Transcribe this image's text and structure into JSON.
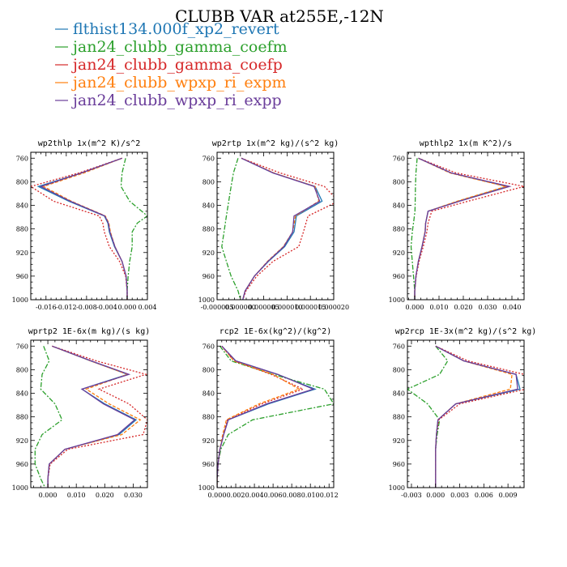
{
  "figure": {
    "title": "CLUBB VAR at255E,-12N"
  },
  "legend": [
    {
      "label": "flthist134.000f_xp2_revert",
      "color": "#1f77b4"
    },
    {
      "label": "jan24_clubb_gamma_coefm",
      "color": "#2ca02c"
    },
    {
      "label": "jan24_clubb_gamma_coefp",
      "color": "#d62728"
    },
    {
      "label": "jan24_clubb_wpxp_ri_expm",
      "color": "#ff7f0e"
    },
    {
      "label": "jan24_clubb_wpxp_ri_expp",
      "color": "#6a3d9a"
    }
  ],
  "chart_data": [
    {
      "type": "line",
      "title": "wp2thlp   1x(m^2 K)/s^2",
      "xlim": [
        -0.019,
        0.004
      ],
      "ylim": [
        1000,
        750
      ],
      "xticks": [
        -0.016,
        -0.012,
        -0.008,
        -0.004,
        0.0,
        0.004
      ],
      "xticklabels": [
        "-0.016",
        "-0.012",
        "-0.008",
        "-0.004",
        "0.000",
        "0.004"
      ],
      "yticks": [
        760,
        800,
        840,
        880,
        920,
        960,
        1000
      ],
      "y": [
        760,
        785,
        808,
        833,
        858,
        870,
        885,
        910,
        935,
        960,
        985,
        1000
      ],
      "series": [
        {
          "color": "#1f77b4",
          "dash": "",
          "values": [
            -0.001,
            -0.009,
            -0.0175,
            -0.0115,
            -0.0045,
            -0.0038,
            -0.0035,
            -0.0025,
            -0.001,
            -0.0002,
            0.0,
            0.0
          ]
        },
        {
          "color": "#2ca02c",
          "dash": "6,2,2,2",
          "values": [
            -0.0003,
            -0.001,
            -0.0012,
            0.0005,
            0.004,
            0.002,
            0.001,
            0.001,
            0.0005,
            0.0002,
            0.0,
            0.0
          ]
        },
        {
          "color": "#d62728",
          "dash": "2,2",
          "values": [
            -0.001,
            -0.0095,
            -0.019,
            -0.0145,
            -0.0055,
            -0.0048,
            -0.0045,
            -0.0035,
            -0.0015,
            -0.0003,
            0.0,
            0.0
          ]
        },
        {
          "color": "#ff7f0e",
          "dash": "4,2",
          "values": [
            -0.001,
            -0.0085,
            -0.0165,
            -0.011,
            -0.0043,
            -0.0036,
            -0.0033,
            -0.0024,
            -0.001,
            -0.0002,
            0.0,
            0.0
          ]
        },
        {
          "color": "#6a3d9a",
          "dash": "",
          "values": [
            -0.001,
            -0.009,
            -0.017,
            -0.0112,
            -0.0044,
            -0.0037,
            -0.0034,
            -0.0024,
            -0.001,
            -0.0002,
            0.0,
            0.0
          ]
        }
      ]
    },
    {
      "type": "line",
      "title": "wp2rtp   1x(m^2 kg)/(s^2 kg)",
      "xlim": [
        -5e-06,
        2e-05
      ],
      "ylim": [
        1000,
        750
      ],
      "xticks": [
        -5e-06,
        0.0,
        5e-06,
        1e-05,
        1.5e-05,
        2e-05
      ],
      "xticklabels": [
        "-0.000005",
        "0.000000",
        "0.000005",
        "0.000010",
        "0.000015",
        "0.000020"
      ],
      "yticks": [
        760,
        800,
        840,
        880,
        920,
        960,
        1000
      ],
      "y": [
        760,
        785,
        808,
        833,
        858,
        885,
        910,
        935,
        960,
        985,
        1000
      ],
      "series": [
        {
          "color": "#1f77b4",
          "dash": "",
          "values": [
            2e-07,
            7e-06,
            1.6e-05,
            1.75e-05,
            1.2e-05,
            1.15e-05,
            9.5e-06,
            6e-06,
            3e-06,
            1e-06,
            5e-07
          ]
        },
        {
          "color": "#2ca02c",
          "dash": "6,2,2,2",
          "values": [
            -5e-07,
            -1.5e-06,
            -2e-06,
            -2.5e-06,
            -3e-06,
            -3.5e-06,
            -4e-06,
            -3e-06,
            -2e-06,
            -5e-07,
            0.0
          ]
        },
        {
          "color": "#d62728",
          "dash": "2,2",
          "values": [
            2e-07,
            8.5e-06,
            1.8e-05,
            2.1e-05,
            1.45e-05,
            1.35e-05,
            1.25e-05,
            7e-06,
            3.5e-06,
            1.2e-06,
            5e-07
          ]
        },
        {
          "color": "#ff7f0e",
          "dash": "4,2",
          "values": [
            2e-07,
            7.2e-06,
            1.6e-05,
            1.68e-05,
            1.18e-05,
            1.12e-05,
            9.2e-06,
            5.8e-06,
            3e-06,
            1e-06,
            5e-07
          ]
        },
        {
          "color": "#6a3d9a",
          "dash": "",
          "values": [
            2e-07,
            7e-06,
            1.58e-05,
            1.7e-05,
            1.15e-05,
            1.12e-05,
            9.3e-06,
            5.9e-06,
            3e-06,
            1e-06,
            5e-07
          ]
        }
      ]
    },
    {
      "type": "line",
      "title": "wpthlp2  1x(m K^2)/s",
      "xlim": [
        -0.003,
        0.045
      ],
      "ylim": [
        1000,
        750
      ],
      "xticks": [
        0.0,
        0.01,
        0.02,
        0.03,
        0.04
      ],
      "xticklabels": [
        "0.000",
        "0.010",
        "0.020",
        "0.030",
        "0.040"
      ],
      "yticks": [
        760,
        800,
        840,
        880,
        920,
        960,
        1000
      ],
      "y": [
        760,
        785,
        808,
        833,
        850,
        870,
        885,
        910,
        935,
        960,
        985,
        1000
      ],
      "series": [
        {
          "color": "#1f77b4",
          "dash": "",
          "values": [
            0.0015,
            0.015,
            0.038,
            0.018,
            0.0055,
            0.0045,
            0.0043,
            0.003,
            0.0015,
            0.0005,
            0.0,
            0.0
          ]
        },
        {
          "color": "#2ca02c",
          "dash": "6,2,2,2",
          "values": [
            0.001,
            0.0005,
            0.0003,
            0.0002,
            0.0001,
            -0.0005,
            -0.001,
            -0.0015,
            -0.001,
            -0.0005,
            0.0,
            0.0
          ]
        },
        {
          "color": "#d62728",
          "dash": "2,2",
          "values": [
            0.0015,
            0.017,
            0.045,
            0.022,
            0.007,
            0.0055,
            0.005,
            0.0035,
            0.0018,
            0.0006,
            0.0,
            0.0
          ]
        },
        {
          "color": "#ff7f0e",
          "dash": "4,2",
          "values": [
            0.0015,
            0.0145,
            0.0375,
            0.0175,
            0.0055,
            0.0045,
            0.0042,
            0.003,
            0.0015,
            0.0005,
            0.0,
            0.0
          ]
        },
        {
          "color": "#6a3d9a",
          "dash": "",
          "values": [
            0.0015,
            0.015,
            0.039,
            0.0185,
            0.0055,
            0.0045,
            0.0043,
            0.003,
            0.0015,
            0.0005,
            0.0,
            0.0
          ]
        }
      ]
    },
    {
      "type": "line",
      "title": "wprtp2  1E-6x(m kg)/(s kg)",
      "xlim": [
        -0.006,
        0.035
      ],
      "ylim": [
        1000,
        750
      ],
      "xticks": [
        0.0,
        0.01,
        0.02,
        0.03
      ],
      "xticklabels": [
        "0.000",
        "0.010",
        "0.020",
        "0.030"
      ],
      "yticks": [
        760,
        800,
        840,
        880,
        920,
        960,
        1000
      ],
      "y": [
        760,
        785,
        808,
        833,
        858,
        885,
        910,
        935,
        960,
        985,
        1000
      ],
      "series": [
        {
          "color": "#1f77b4",
          "dash": "",
          "values": [
            0.0015,
            0.015,
            0.028,
            0.012,
            0.02,
            0.031,
            0.025,
            0.006,
            0.0005,
            0.0,
            0.0
          ]
        },
        {
          "color": "#2ca02c",
          "dash": "6,2,2,2",
          "values": [
            -0.0015,
            0.0005,
            -0.002,
            -0.0025,
            0.0025,
            0.005,
            -0.002,
            -0.0045,
            -0.0045,
            -0.0025,
            -0.001
          ]
        },
        {
          "color": "#d62728",
          "dash": "2,2",
          "values": [
            0.0015,
            0.017,
            0.0345,
            0.018,
            0.0285,
            0.035,
            0.0335,
            0.007,
            0.0008,
            0.0,
            0.0
          ]
        },
        {
          "color": "#ff7f0e",
          "dash": "4,2",
          "values": [
            0.0015,
            0.015,
            0.028,
            0.0135,
            0.0215,
            0.0325,
            0.026,
            0.006,
            0.0005,
            0.0,
            0.0
          ]
        },
        {
          "color": "#6a3d9a",
          "dash": "",
          "values": [
            0.0015,
            0.0152,
            0.0285,
            0.012,
            0.0195,
            0.0305,
            0.0245,
            0.006,
            0.0005,
            0.0,
            0.0
          ]
        }
      ]
    },
    {
      "type": "line",
      "title": "rcp2   1E-6x(kg^2)/(kg^2)",
      "xlim": [
        0.0,
        0.0125
      ],
      "ylim": [
        1000,
        750
      ],
      "xticks": [
        0.0,
        0.002,
        0.004,
        0.006,
        0.008,
        0.01,
        0.012
      ],
      "xticklabels": [
        "0.000",
        "0.002",
        "0.004",
        "0.006",
        "0.008",
        "0.010",
        "0.012"
      ],
      "yticks": [
        760,
        800,
        840,
        880,
        920,
        960,
        1000
      ],
      "y": [
        760,
        785,
        808,
        833,
        858,
        885,
        910,
        935,
        960,
        985,
        1000
      ],
      "series": [
        {
          "color": "#1f77b4",
          "dash": "",
          "values": [
            0.0005,
            0.002,
            0.0065,
            0.0105,
            0.0055,
            0.0012,
            0.0007,
            0.0003,
            0.0001,
            0.0,
            0.0
          ]
        },
        {
          "color": "#2ca02c",
          "dash": "6,2,2,2",
          "values": [
            0.0003,
            0.0015,
            0.006,
            0.0115,
            0.0125,
            0.0038,
            0.0012,
            0.0004,
            0.0001,
            0.0,
            0.0
          ]
        },
        {
          "color": "#d62728",
          "dash": "2,2",
          "values": [
            0.0005,
            0.0018,
            0.0058,
            0.0092,
            0.0048,
            0.0011,
            0.0007,
            0.0003,
            0.0001,
            0.0,
            0.0
          ]
        },
        {
          "color": "#ff7f0e",
          "dash": "4,2",
          "values": [
            0.0005,
            0.0018,
            0.006,
            0.0088,
            0.0045,
            0.001,
            0.0006,
            0.0003,
            0.0001,
            0.0,
            0.0
          ]
        },
        {
          "color": "#6a3d9a",
          "dash": "",
          "values": [
            0.0005,
            0.002,
            0.0065,
            0.0103,
            0.0053,
            0.0012,
            0.0007,
            0.0003,
            0.0001,
            0.0,
            0.0
          ]
        }
      ]
    },
    {
      "type": "line",
      "title": "wp2rcp  1E-3x(m^2 kg)/(s^2 kg)",
      "xlim": [
        -0.0035,
        0.011
      ],
      "ylim": [
        1000,
        750
      ],
      "xticks": [
        -0.003,
        0.0,
        0.003,
        0.006,
        0.009
      ],
      "xticklabels": [
        "-0.003",
        "0.000",
        "0.003",
        "0.006",
        "0.009"
      ],
      "yticks": [
        760,
        800,
        840,
        880,
        920,
        960,
        1000
      ],
      "y": [
        760,
        785,
        808,
        833,
        858,
        885,
        910,
        935,
        960,
        985,
        1000
      ],
      "series": [
        {
          "color": "#1f77b4",
          "dash": "",
          "values": [
            0.0,
            0.0035,
            0.01,
            0.0105,
            0.0025,
            0.0003,
            0.0001,
            0.0,
            0.0,
            0.0,
            0.0
          ]
        },
        {
          "color": "#2ca02c",
          "dash": "6,2,2,2",
          "values": [
            0.0,
            0.0015,
            0.0005,
            -0.0035,
            -0.001,
            0.0005,
            0.0002,
            0.0,
            0.0,
            0.0,
            0.0
          ]
        },
        {
          "color": "#d62728",
          "dash": "2,2",
          "values": [
            0.0,
            0.004,
            0.011,
            0.0112,
            0.003,
            0.0004,
            0.0001,
            0.0,
            0.0,
            0.0,
            0.0
          ]
        },
        {
          "color": "#ff7f0e",
          "dash": "4,2",
          "values": [
            0.0,
            0.0035,
            0.0095,
            0.0093,
            0.0025,
            0.0003,
            0.0001,
            0.0,
            0.0,
            0.0,
            0.0
          ]
        },
        {
          "color": "#6a3d9a",
          "dash": "",
          "values": [
            0.0,
            0.0035,
            0.01,
            0.0102,
            0.0025,
            0.0003,
            0.0001,
            0.0,
            0.0,
            0.0,
            0.0
          ]
        }
      ]
    }
  ]
}
